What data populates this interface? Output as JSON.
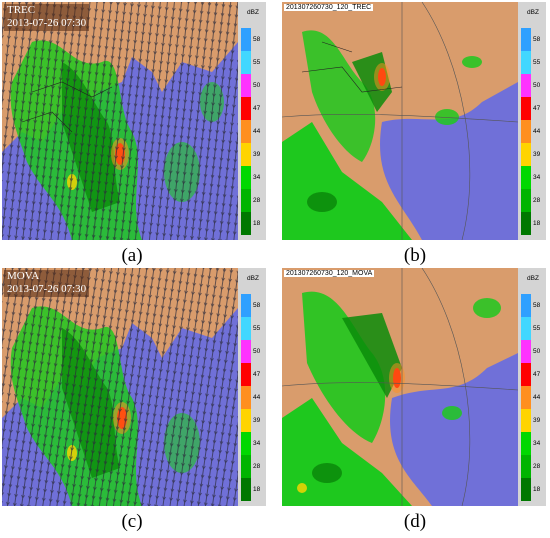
{
  "panels": {
    "a": {
      "caption": "(a)",
      "title": "TREC",
      "datetime": "2013-07-26 07:30"
    },
    "b": {
      "caption": "(b)",
      "stamp": "201307260730_120_TREC"
    },
    "c": {
      "caption": "(c)",
      "title": "MOVA",
      "datetime": "2013-07-26 07:30"
    },
    "d": {
      "caption": "(d)",
      "stamp": "201307260730_120_MOVA"
    }
  },
  "colorbar": {
    "unit": "dBZ",
    "levels": [
      "58",
      "55",
      "50",
      "47",
      "44",
      "39",
      "34",
      "28",
      "18"
    ],
    "colors": [
      "#2fa0ff",
      "#41d7ff",
      "#ff32ff",
      "#ff0000",
      "#ff8f1f",
      "#ffd400",
      "#00d800",
      "#00b400",
      "#007800"
    ]
  },
  "colors": {
    "sea": "#7070d8",
    "land": "#d99c6c",
    "echo_light": "#1ec81e",
    "echo_dark": "#0b8c0b",
    "vector": "#2a2a3a"
  }
}
